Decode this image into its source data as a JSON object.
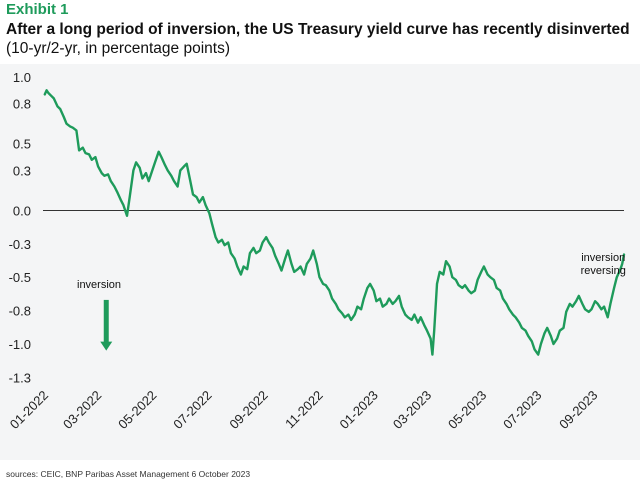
{
  "header": {
    "exhibit": "Exhibit 1",
    "title_bold": "After a long period of inversion, the US Treasury yield curve has recently disinverted",
    "title_rest": "(10-yr/2-yr, in percentage points)"
  },
  "footer": {
    "source": "sources: CEIC, BNP Paribas Asset Management  6 October 2023"
  },
  "colors": {
    "series": "#1e9b5b",
    "background": "#f4f5f6",
    "zero_line": "#333333"
  },
  "chart_data": {
    "type": "line",
    "title": "After a long period of inversion, the US Treasury yield curve has recently disinverted",
    "ylabel": "(10-yr/2-yr, in percentage points)",
    "ylim": [
      -1.3,
      1.0
    ],
    "xlim": [
      "2022-01-01",
      "2023-10-06"
    ],
    "grid": false,
    "y_ticks": [
      {
        "value": 1.0,
        "label": "1.0"
      },
      {
        "value": 0.8,
        "label": "0.8"
      },
      {
        "value": 0.5,
        "label": "0.5"
      },
      {
        "value": 0.3,
        "label": "0.3"
      },
      {
        "value": 0.0,
        "label": "0.0"
      },
      {
        "value": -0.25,
        "label": "-0.3"
      },
      {
        "value": -0.5,
        "label": "-0.5"
      },
      {
        "value": -0.75,
        "label": "-0.8"
      },
      {
        "value": -1.0,
        "label": "-1.0"
      },
      {
        "value": -1.25,
        "label": "-1.3"
      }
    ],
    "x_ticks": [
      {
        "date": "2022-01-01",
        "label": "01-2022"
      },
      {
        "date": "2022-03-01",
        "label": "03-2022"
      },
      {
        "date": "2022-05-01",
        "label": "05-2022"
      },
      {
        "date": "2022-07-01",
        "label": "07-2022"
      },
      {
        "date": "2022-09-01",
        "label": "09-2022"
      },
      {
        "date": "2022-11-01",
        "label": "11-2022"
      },
      {
        "date": "2023-01-01",
        "label": "01-2023"
      },
      {
        "date": "2023-03-01",
        "label": "03-2023"
      },
      {
        "date": "2023-05-01",
        "label": "05-2023"
      },
      {
        "date": "2023-07-01",
        "label": "07-2023"
      },
      {
        "date": "2023-09-01",
        "label": "09-2023"
      }
    ],
    "annotations": [
      {
        "text": "inversion",
        "lines": [
          "inversion"
        ],
        "date": "2022-03-04",
        "y": -0.58
      },
      {
        "text": "inversion reversing",
        "lines": [
          "inversion",
          "reversing"
        ],
        "date": "2023-09-13",
        "y": -0.38
      }
    ],
    "arrow": {
      "date": "2022-03-12",
      "y_start": -0.67,
      "y_end": -1.05
    },
    "series": [
      {
        "points": [
          [
            "2022-01-03",
            0.87
          ],
          [
            "2022-01-05",
            0.9
          ],
          [
            "2022-01-07",
            0.88
          ],
          [
            "2022-01-10",
            0.86
          ],
          [
            "2022-01-13",
            0.84
          ],
          [
            "2022-01-17",
            0.78
          ],
          [
            "2022-01-20",
            0.76
          ],
          [
            "2022-01-24",
            0.7
          ],
          [
            "2022-01-27",
            0.65
          ],
          [
            "2022-01-31",
            0.63
          ],
          [
            "2022-02-03",
            0.62
          ],
          [
            "2022-02-07",
            0.6
          ],
          [
            "2022-02-10",
            0.45
          ],
          [
            "2022-02-14",
            0.47
          ],
          [
            "2022-02-17",
            0.43
          ],
          [
            "2022-02-21",
            0.42
          ],
          [
            "2022-02-24",
            0.38
          ],
          [
            "2022-02-28",
            0.4
          ],
          [
            "2022-03-03",
            0.33
          ],
          [
            "2022-03-07",
            0.28
          ],
          [
            "2022-03-10",
            0.26
          ],
          [
            "2022-03-14",
            0.27
          ],
          [
            "2022-03-17",
            0.22
          ],
          [
            "2022-03-21",
            0.18
          ],
          [
            "2022-03-24",
            0.14
          ],
          [
            "2022-03-28",
            0.08
          ],
          [
            "2022-03-31",
            0.04
          ],
          [
            "2022-04-04",
            -0.04
          ],
          [
            "2022-04-07",
            0.1
          ],
          [
            "2022-04-11",
            0.3
          ],
          [
            "2022-04-14",
            0.36
          ],
          [
            "2022-04-18",
            0.32
          ],
          [
            "2022-04-21",
            0.24
          ],
          [
            "2022-04-25",
            0.28
          ],
          [
            "2022-04-28",
            0.22
          ],
          [
            "2022-05-02",
            0.3
          ],
          [
            "2022-05-05",
            0.36
          ],
          [
            "2022-05-09",
            0.44
          ],
          [
            "2022-05-12",
            0.4
          ],
          [
            "2022-05-16",
            0.34
          ],
          [
            "2022-05-19",
            0.3
          ],
          [
            "2022-05-23",
            0.26
          ],
          [
            "2022-05-26",
            0.22
          ],
          [
            "2022-05-30",
            0.18
          ],
          [
            "2022-06-02",
            0.3
          ],
          [
            "2022-06-06",
            0.33
          ],
          [
            "2022-06-09",
            0.35
          ],
          [
            "2022-06-13",
            0.22
          ],
          [
            "2022-06-16",
            0.12
          ],
          [
            "2022-06-20",
            0.1
          ],
          [
            "2022-06-23",
            0.06
          ],
          [
            "2022-06-27",
            0.1
          ],
          [
            "2022-06-30",
            0.04
          ],
          [
            "2022-07-04",
            -0.02
          ],
          [
            "2022-07-07",
            -0.1
          ],
          [
            "2022-07-11",
            -0.2
          ],
          [
            "2022-07-14",
            -0.24
          ],
          [
            "2022-07-18",
            -0.22
          ],
          [
            "2022-07-21",
            -0.26
          ],
          [
            "2022-07-25",
            -0.24
          ],
          [
            "2022-07-28",
            -0.32
          ],
          [
            "2022-08-01",
            -0.36
          ],
          [
            "2022-08-04",
            -0.42
          ],
          [
            "2022-08-08",
            -0.48
          ],
          [
            "2022-08-11",
            -0.42
          ],
          [
            "2022-08-15",
            -0.44
          ],
          [
            "2022-08-18",
            -0.32
          ],
          [
            "2022-08-22",
            -0.28
          ],
          [
            "2022-08-25",
            -0.32
          ],
          [
            "2022-08-29",
            -0.3
          ],
          [
            "2022-09-01",
            -0.24
          ],
          [
            "2022-09-05",
            -0.2
          ],
          [
            "2022-09-08",
            -0.24
          ],
          [
            "2022-09-12",
            -0.28
          ],
          [
            "2022-09-15",
            -0.34
          ],
          [
            "2022-09-19",
            -0.4
          ],
          [
            "2022-09-22",
            -0.45
          ],
          [
            "2022-09-26",
            -0.36
          ],
          [
            "2022-09-29",
            -0.3
          ],
          [
            "2022-10-03",
            -0.4
          ],
          [
            "2022-10-06",
            -0.46
          ],
          [
            "2022-10-10",
            -0.44
          ],
          [
            "2022-10-13",
            -0.42
          ],
          [
            "2022-10-17",
            -0.48
          ],
          [
            "2022-10-20",
            -0.4
          ],
          [
            "2022-10-24",
            -0.36
          ],
          [
            "2022-10-27",
            -0.3
          ],
          [
            "2022-10-31",
            -0.4
          ],
          [
            "2022-11-03",
            -0.5
          ],
          [
            "2022-11-07",
            -0.55
          ],
          [
            "2022-11-10",
            -0.56
          ],
          [
            "2022-11-14",
            -0.6
          ],
          [
            "2022-11-17",
            -0.66
          ],
          [
            "2022-11-21",
            -0.7
          ],
          [
            "2022-11-24",
            -0.74
          ],
          [
            "2022-11-28",
            -0.77
          ],
          [
            "2022-12-01",
            -0.8
          ],
          [
            "2022-12-05",
            -0.78
          ],
          [
            "2022-12-08",
            -0.82
          ],
          [
            "2022-12-12",
            -0.78
          ],
          [
            "2022-12-15",
            -0.72
          ],
          [
            "2022-12-19",
            -0.74
          ],
          [
            "2022-12-22",
            -0.66
          ],
          [
            "2022-12-26",
            -0.58
          ],
          [
            "2022-12-29",
            -0.55
          ],
          [
            "2023-01-02",
            -0.6
          ],
          [
            "2023-01-05",
            -0.68
          ],
          [
            "2023-01-09",
            -0.66
          ],
          [
            "2023-01-12",
            -0.72
          ],
          [
            "2023-01-16",
            -0.7
          ],
          [
            "2023-01-19",
            -0.66
          ],
          [
            "2023-01-23",
            -0.7
          ],
          [
            "2023-01-26",
            -0.68
          ],
          [
            "2023-01-30",
            -0.64
          ],
          [
            "2023-02-02",
            -0.72
          ],
          [
            "2023-02-06",
            -0.78
          ],
          [
            "2023-02-09",
            -0.8
          ],
          [
            "2023-02-13",
            -0.82
          ],
          [
            "2023-02-16",
            -0.78
          ],
          [
            "2023-02-20",
            -0.84
          ],
          [
            "2023-02-23",
            -0.8
          ],
          [
            "2023-02-27",
            -0.86
          ],
          [
            "2023-03-02",
            -0.9
          ],
          [
            "2023-03-06",
            -0.96
          ],
          [
            "2023-03-08",
            -1.08
          ],
          [
            "2023-03-10",
            -0.9
          ],
          [
            "2023-03-13",
            -0.55
          ],
          [
            "2023-03-16",
            -0.46
          ],
          [
            "2023-03-20",
            -0.48
          ],
          [
            "2023-03-23",
            -0.38
          ],
          [
            "2023-03-27",
            -0.42
          ],
          [
            "2023-03-30",
            -0.5
          ],
          [
            "2023-04-03",
            -0.52
          ],
          [
            "2023-04-06",
            -0.56
          ],
          [
            "2023-04-10",
            -0.58
          ],
          [
            "2023-04-13",
            -0.56
          ],
          [
            "2023-04-17",
            -0.6
          ],
          [
            "2023-04-20",
            -0.62
          ],
          [
            "2023-04-24",
            -0.6
          ],
          [
            "2023-04-27",
            -0.52
          ],
          [
            "2023-05-01",
            -0.46
          ],
          [
            "2023-05-04",
            -0.42
          ],
          [
            "2023-05-08",
            -0.48
          ],
          [
            "2023-05-11",
            -0.5
          ],
          [
            "2023-05-15",
            -0.52
          ],
          [
            "2023-05-18",
            -0.58
          ],
          [
            "2023-05-22",
            -0.6
          ],
          [
            "2023-05-25",
            -0.66
          ],
          [
            "2023-05-29",
            -0.7
          ],
          [
            "2023-06-01",
            -0.74
          ],
          [
            "2023-06-05",
            -0.78
          ],
          [
            "2023-06-08",
            -0.8
          ],
          [
            "2023-06-12",
            -0.84
          ],
          [
            "2023-06-15",
            -0.88
          ],
          [
            "2023-06-19",
            -0.9
          ],
          [
            "2023-06-22",
            -0.94
          ],
          [
            "2023-06-26",
            -0.98
          ],
          [
            "2023-06-29",
            -1.04
          ],
          [
            "2023-07-03",
            -1.08
          ],
          [
            "2023-07-06",
            -1.0
          ],
          [
            "2023-07-10",
            -0.92
          ],
          [
            "2023-07-13",
            -0.88
          ],
          [
            "2023-07-17",
            -0.94
          ],
          [
            "2023-07-20",
            -1.0
          ],
          [
            "2023-07-24",
            -0.96
          ],
          [
            "2023-07-27",
            -0.9
          ],
          [
            "2023-07-31",
            -0.88
          ],
          [
            "2023-08-03",
            -0.76
          ],
          [
            "2023-08-07",
            -0.7
          ],
          [
            "2023-08-10",
            -0.72
          ],
          [
            "2023-08-14",
            -0.68
          ],
          [
            "2023-08-17",
            -0.64
          ],
          [
            "2023-08-21",
            -0.7
          ],
          [
            "2023-08-24",
            -0.74
          ],
          [
            "2023-08-28",
            -0.76
          ],
          [
            "2023-08-31",
            -0.74
          ],
          [
            "2023-09-04",
            -0.68
          ],
          [
            "2023-09-07",
            -0.7
          ],
          [
            "2023-09-11",
            -0.74
          ],
          [
            "2023-09-14",
            -0.72
          ],
          [
            "2023-09-18",
            -0.8
          ],
          [
            "2023-09-21",
            -0.7
          ],
          [
            "2023-09-25",
            -0.58
          ],
          [
            "2023-09-28",
            -0.5
          ],
          [
            "2023-10-02",
            -0.44
          ],
          [
            "2023-10-04",
            -0.4
          ],
          [
            "2023-10-06",
            -0.33
          ]
        ]
      }
    ]
  }
}
